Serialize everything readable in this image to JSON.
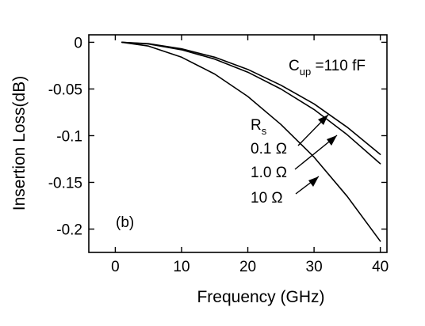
{
  "chart_data": {
    "type": "line",
    "xlabel": "Frequency (GHz)",
    "ylabel": "Insertion Loss(dB)",
    "xlim": [
      -4,
      41
    ],
    "ylim": [
      -0.225,
      0.008
    ],
    "xticks": [
      0,
      10,
      20,
      30,
      40
    ],
    "xtick_labels": [
      "0",
      "10",
      "20",
      "30",
      "40"
    ],
    "yticks": [
      0,
      -0.05,
      -0.1,
      -0.15,
      -0.2
    ],
    "ytick_labels": [
      "0",
      "-0.05",
      "-0.1",
      "-0.15",
      "-0.2"
    ],
    "grid": false,
    "legend": "none",
    "annotations": {
      "cup_main": "C",
      "cup_sub": "up",
      "cup_rest": " =110 fF",
      "rs_main": "R",
      "rs_sub": "s",
      "rs_items": [
        "0.1 Ω",
        "1.0 Ω",
        "10  Ω"
      ],
      "panel_label": "(b)"
    },
    "series": [
      {
        "label": "0.1 Ω",
        "x": [
          1,
          5,
          10,
          15,
          20,
          25,
          30,
          35,
          40
        ],
        "y": [
          0.0,
          -0.0015,
          -0.007,
          -0.016,
          -0.029,
          -0.046,
          -0.066,
          -0.091,
          -0.12
        ]
      },
      {
        "label": "1.0 Ω",
        "x": [
          1,
          5,
          10,
          15,
          20,
          25,
          30,
          35,
          40
        ],
        "y": [
          0.0,
          -0.0018,
          -0.008,
          -0.018,
          -0.032,
          -0.05,
          -0.072,
          -0.099,
          -0.13
        ]
      },
      {
        "label": "10  Ω",
        "x": [
          1,
          5,
          10,
          15,
          20,
          25,
          30,
          35,
          40
        ],
        "y": [
          0.0,
          -0.004,
          -0.016,
          -0.034,
          -0.058,
          -0.088,
          -0.123,
          -0.165,
          -0.213
        ]
      }
    ]
  }
}
